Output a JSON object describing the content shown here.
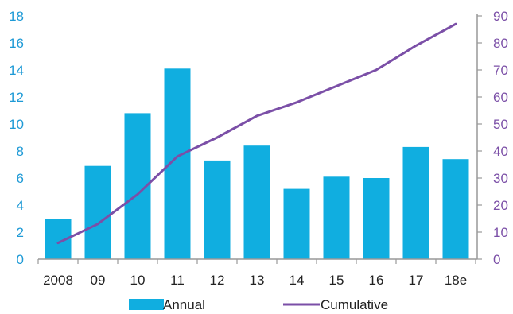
{
  "chart_data": {
    "type": "bar",
    "categories": [
      "2008",
      "09",
      "10",
      "11",
      "12",
      "13",
      "14",
      "15",
      "16",
      "17",
      "18e"
    ],
    "series": [
      {
        "name": "Annual",
        "type": "bar",
        "axis": "left",
        "values": [
          3.0,
          6.9,
          10.8,
          14.1,
          7.3,
          8.4,
          5.2,
          6.1,
          6.0,
          8.3,
          7.4
        ]
      },
      {
        "name": "Cumulative",
        "type": "line",
        "axis": "right",
        "values": [
          6,
          13,
          24,
          38,
          45,
          53,
          58,
          64,
          70,
          79,
          87
        ]
      }
    ],
    "title": "",
    "xlabel": "",
    "ylabel": "",
    "ylim": [
      0,
      18
    ],
    "y2lim": [
      0,
      90
    ],
    "yticks": [
      "0",
      "2",
      "4",
      "6",
      "8",
      "10",
      "12",
      "14",
      "16",
      "18"
    ],
    "y2ticks": [
      "0",
      "10",
      "20",
      "30",
      "40",
      "50",
      "60",
      "70",
      "80",
      "90"
    ],
    "grid": false,
    "legend": "bottom",
    "colors": {
      "bar": "#10aee0",
      "line": "#7b4fa7",
      "left_ticks": "#1e9ad6",
      "right_ticks": "#7b4fa7",
      "axis": "#999999"
    }
  }
}
